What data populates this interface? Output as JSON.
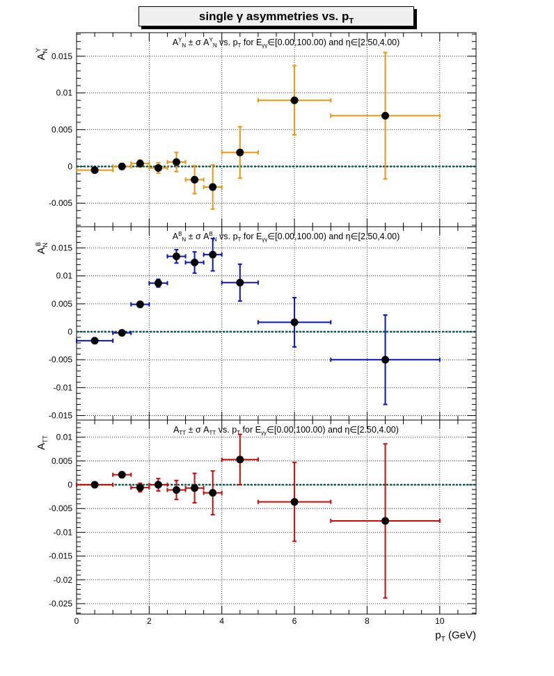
{
  "figure": {
    "title_main": "single  γ asymmetries vs. p",
    "title_sub": "T",
    "xlabel_main": "p",
    "xlabel_sub": "T",
    "xlabel_unit": " (GeV)",
    "x_ticks": [
      "0",
      "2",
      "4",
      "6",
      "8",
      "10"
    ]
  },
  "panels": [
    {
      "ylabel": "A",
      "ylabel_sub": "N",
      "ylabel_sup": "Y",
      "title_parts": [
        {
          "t": "A"
        },
        {
          "t": "Y",
          "sup": true
        },
        {
          "t": "N",
          "sub": true
        },
        {
          "t": " ± σ A"
        },
        {
          "t": "Y",
          "sup": true
        },
        {
          "t": "N",
          "sub": true
        },
        {
          "t": " vs. p"
        },
        {
          "t": "T",
          "sub": true
        },
        {
          "t": "  for E"
        },
        {
          "t": "γγ",
          "sub": true
        },
        {
          "t": "∈[0.00,100.00) and η∈[2.50,4.00)"
        }
      ],
      "y_ticks": [
        "0.015",
        "0.01",
        "0.005",
        "0",
        "-0.005"
      ],
      "color": "#e8950f"
    },
    {
      "ylabel": "A",
      "ylabel_sub": "N",
      "ylabel_sup": "B",
      "title_parts": [
        {
          "t": "A"
        },
        {
          "t": "B",
          "sup": true
        },
        {
          "t": "N",
          "sub": true
        },
        {
          "t": " ± σ A"
        },
        {
          "t": "B",
          "sup": true
        },
        {
          "t": "N",
          "sub": true
        },
        {
          "t": " vs. p"
        },
        {
          "t": "T",
          "sub": true
        },
        {
          "t": "  for E"
        },
        {
          "t": "γγ",
          "sub": true
        },
        {
          "t": "∈[0.00,100.00) and η∈[2.50,4.00)"
        }
      ],
      "y_ticks": [
        "0.015",
        "0.01",
        "0.005",
        "0",
        "-0.005",
        "-0.01",
        "-0.015"
      ],
      "color": "#0a14b4"
    },
    {
      "ylabel": "A",
      "ylabel_sub": "TT",
      "ylabel_sup": "",
      "title_parts": [
        {
          "t": "A"
        },
        {
          "t": "TT",
          "sub": true
        },
        {
          "t": " ± σ A"
        },
        {
          "t": "TT",
          "sub": true
        },
        {
          "t": " vs. p"
        },
        {
          "t": "T",
          "sub": true
        },
        {
          "t": "  for E"
        },
        {
          "t": "γγ",
          "sub": true
        },
        {
          "t": "∈[0.00,100.00) and η∈[2.50,4.00)"
        }
      ],
      "y_ticks": [
        "0.01",
        "0.005",
        "0",
        "-0.005",
        "-0.01",
        "-0.015",
        "-0.02",
        "-0.025"
      ],
      "color": "#c80a0a"
    }
  ],
  "chart_data": [
    {
      "type": "scatter",
      "title": "A_N^Y ± σ A_N^Y vs. p_T for E_γγ∈[0.00,100.00) and η∈[2.50,4.00)",
      "xlabel": "p_T (GeV)",
      "ylabel": "A_N^Y",
      "xlim": [
        0,
        11
      ],
      "ylim": [
        -0.0082,
        0.0182
      ],
      "grid": true,
      "zero_line": true,
      "points": [
        {
          "x": 0.5,
          "xlo": 0.0,
          "xhi": 1.0,
          "y": -0.0005,
          "yerr": 0.0003
        },
        {
          "x": 1.25,
          "xlo": 1.0,
          "xhi": 1.5,
          "y": 0.0,
          "yerr": 0.0004
        },
        {
          "x": 1.75,
          "xlo": 1.5,
          "xhi": 2.0,
          "y": 0.0004,
          "yerr": 0.0005
        },
        {
          "x": 2.25,
          "xlo": 2.0,
          "xhi": 2.5,
          "y": -0.0002,
          "yerr": 0.0007
        },
        {
          "x": 2.75,
          "xlo": 2.5,
          "xhi": 3.0,
          "y": 0.0006,
          "yerr": 0.0013
        },
        {
          "x": 3.25,
          "xlo": 3.0,
          "xhi": 3.5,
          "y": -0.0018,
          "yerr": 0.0019
        },
        {
          "x": 3.75,
          "xlo": 3.5,
          "xhi": 4.0,
          "y": -0.0028,
          "yerr": 0.003
        },
        {
          "x": 4.5,
          "xlo": 4.0,
          "xhi": 5.0,
          "y": 0.0019,
          "yerr": 0.0035
        },
        {
          "x": 6.0,
          "xlo": 5.0,
          "xhi": 7.0,
          "y": 0.009,
          "yerr": 0.0047
        },
        {
          "x": 8.5,
          "xlo": 7.0,
          "xhi": 10.0,
          "y": 0.0069,
          "yerr": 0.0086
        }
      ]
    },
    {
      "type": "scatter",
      "title": "A_N^B ± σ A_N^B vs. p_T for E_γγ∈[0.00,100.00) and η∈[2.50,4.00)",
      "xlabel": "p_T (GeV)",
      "ylabel": "A_N^B",
      "xlim": [
        0,
        11
      ],
      "ylim": [
        -0.0158,
        0.0188
      ],
      "grid": true,
      "zero_line": true,
      "points": [
        {
          "x": 0.5,
          "xlo": 0.0,
          "xhi": 1.0,
          "y": -0.0016,
          "yerr": 0.0003
        },
        {
          "x": 1.25,
          "xlo": 1.0,
          "xhi": 1.5,
          "y": -0.0002,
          "yerr": 0.0004
        },
        {
          "x": 1.75,
          "xlo": 1.5,
          "xhi": 2.0,
          "y": 0.0049,
          "yerr": 0.0005
        },
        {
          "x": 2.25,
          "xlo": 2.0,
          "xhi": 2.5,
          "y": 0.0087,
          "yerr": 0.0007
        },
        {
          "x": 2.75,
          "xlo": 2.5,
          "xhi": 3.0,
          "y": 0.0135,
          "yerr": 0.0012
        },
        {
          "x": 3.25,
          "xlo": 3.0,
          "xhi": 3.5,
          "y": 0.0124,
          "yerr": 0.0019
        },
        {
          "x": 3.75,
          "xlo": 3.5,
          "xhi": 4.0,
          "y": 0.0138,
          "yerr": 0.0029
        },
        {
          "x": 4.5,
          "xlo": 4.0,
          "xhi": 5.0,
          "y": 0.0088,
          "yerr": 0.0033
        },
        {
          "x": 6.0,
          "xlo": 5.0,
          "xhi": 7.0,
          "y": 0.0017,
          "yerr": 0.0044
        },
        {
          "x": 8.5,
          "xlo": 7.0,
          "xhi": 10.0,
          "y": -0.005,
          "yerr": 0.008
        }
      ]
    },
    {
      "type": "scatter",
      "title": "A_TT ± σ A_TT vs. p_T for E_γγ∈[0.00,100.00) and η∈[2.50,4.00)",
      "xlabel": "p_T (GeV)",
      "ylabel": "A_TT",
      "xlim": [
        0,
        11
      ],
      "ylim": [
        -0.0272,
        0.0136
      ],
      "grid": true,
      "zero_line": true,
      "points": [
        {
          "x": 0.5,
          "xlo": 0.0,
          "xhi": 1.0,
          "y": 0.0,
          "yerr": 0.0003
        },
        {
          "x": 1.25,
          "xlo": 1.0,
          "xhi": 1.5,
          "y": 0.0021,
          "yerr": 0.0006
        },
        {
          "x": 1.75,
          "xlo": 1.5,
          "xhi": 2.0,
          "y": -0.0006,
          "yerr": 0.0009
        },
        {
          "x": 2.25,
          "xlo": 2.0,
          "xhi": 2.5,
          "y": 0.0,
          "yerr": 0.0013
        },
        {
          "x": 2.75,
          "xlo": 2.5,
          "xhi": 3.0,
          "y": -0.0011,
          "yerr": 0.002
        },
        {
          "x": 3.25,
          "xlo": 3.0,
          "xhi": 3.5,
          "y": -0.0007,
          "yerr": 0.0031
        },
        {
          "x": 3.75,
          "xlo": 3.5,
          "xhi": 4.0,
          "y": -0.0017,
          "yerr": 0.0046
        },
        {
          "x": 4.5,
          "xlo": 4.0,
          "xhi": 5.0,
          "y": 0.0053,
          "yerr": 0.0053
        },
        {
          "x": 6.0,
          "xlo": 5.0,
          "xhi": 7.0,
          "y": -0.0036,
          "yerr": 0.0083
        },
        {
          "x": 8.5,
          "xlo": 7.0,
          "xhi": 10.0,
          "y": -0.0076,
          "yerr": 0.0162
        }
      ]
    }
  ]
}
